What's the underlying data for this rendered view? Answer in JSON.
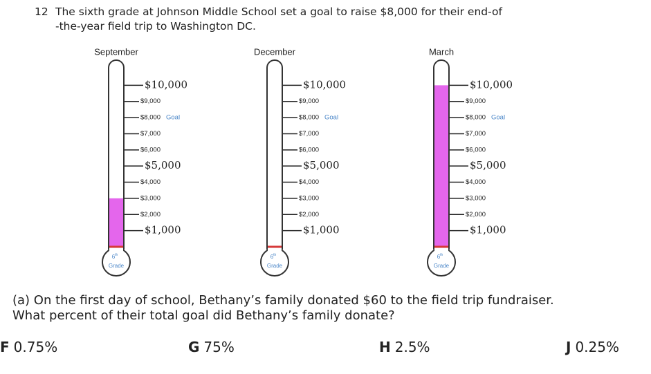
{
  "question": {
    "number": "12",
    "lines": [
      "The sixth grade at Johnson Middle School set a goal to raise $8,000 for their end-of",
      "-the-year field trip to Washington DC."
    ]
  },
  "chart_data": [
    {
      "type": "thermometer",
      "title": "September",
      "value": 3000,
      "fill_color": "#e466ec",
      "base_color": "#d63a3a",
      "ylim": [
        0,
        11000
      ],
      "yticks": [
        {
          "value": 10000,
          "label": "$10,000"
        },
        {
          "value": 9000,
          "label": "$9,000"
        },
        {
          "value": 8000,
          "label": "$8,000"
        },
        {
          "value": 7000,
          "label": "$7,000"
        },
        {
          "value": 6000,
          "label": "$6,000"
        },
        {
          "value": 5000,
          "label": "$5,000"
        },
        {
          "value": 4000,
          "label": "$4,000"
        },
        {
          "value": 3000,
          "label": "$3,000"
        },
        {
          "value": 2000,
          "label": "$2,000"
        },
        {
          "value": 1000,
          "label": "$1,000"
        }
      ],
      "major_ticks": [
        10000,
        5000,
        1000
      ],
      "goal": {
        "value": 8000,
        "label": "Goal"
      },
      "bulb": {
        "number": "6",
        "suffix": "th",
        "label": "Grade"
      }
    },
    {
      "type": "thermometer",
      "title": "December",
      "value": 0,
      "fill_color": "#e466ec",
      "base_color": "#d63a3a",
      "ylim": [
        0,
        11000
      ],
      "yticks": [
        {
          "value": 10000,
          "label": "$10,000"
        },
        {
          "value": 9000,
          "label": "$9,000"
        },
        {
          "value": 8000,
          "label": "$8,000"
        },
        {
          "value": 7000,
          "label": "$7,000"
        },
        {
          "value": 6000,
          "label": "$6,000"
        },
        {
          "value": 5000,
          "label": "$5,000"
        },
        {
          "value": 4000,
          "label": "$4,000"
        },
        {
          "value": 3000,
          "label": "$3,000"
        },
        {
          "value": 2000,
          "label": "$2,000"
        },
        {
          "value": 1000,
          "label": "$1,000"
        }
      ],
      "major_ticks": [
        10000,
        5000,
        1000
      ],
      "goal": {
        "value": 8000,
        "label": "Goal"
      },
      "bulb": {
        "number": "6",
        "suffix": "th",
        "label": "Grade"
      }
    },
    {
      "type": "thermometer",
      "title": "March",
      "value": 10000,
      "fill_color": "#e466ec",
      "base_color": "#d63a3a",
      "ylim": [
        0,
        11000
      ],
      "yticks": [
        {
          "value": 10000,
          "label": "$10,000"
        },
        {
          "value": 9000,
          "label": "$9,000"
        },
        {
          "value": 8000,
          "label": "$8,000"
        },
        {
          "value": 7000,
          "label": "$7,000"
        },
        {
          "value": 6000,
          "label": "$6,000"
        },
        {
          "value": 5000,
          "label": "$5,000"
        },
        {
          "value": 4000,
          "label": "$4,000"
        },
        {
          "value": 3000,
          "label": "$3,000"
        },
        {
          "value": 2000,
          "label": "$2,000"
        },
        {
          "value": 1000,
          "label": "$1,000"
        }
      ],
      "major_ticks": [
        10000,
        5000,
        1000
      ],
      "goal": {
        "value": 8000,
        "label": "Goal"
      },
      "bulb": {
        "number": "6",
        "suffix": "th",
        "label": "Grade"
      }
    }
  ],
  "part_a": {
    "lines": [
      "(a) On the first day of school, Bethany’s family donated $60 to the field trip fundraiser.",
      "What percent of their total goal did Bethany’s family donate?"
    ]
  },
  "options": [
    {
      "letter": "F",
      "text": "0.75%"
    },
    {
      "letter": "G",
      "text": "75%"
    },
    {
      "letter": "H",
      "text": "2.5%"
    },
    {
      "letter": "J",
      "text": "0.25%"
    }
  ]
}
